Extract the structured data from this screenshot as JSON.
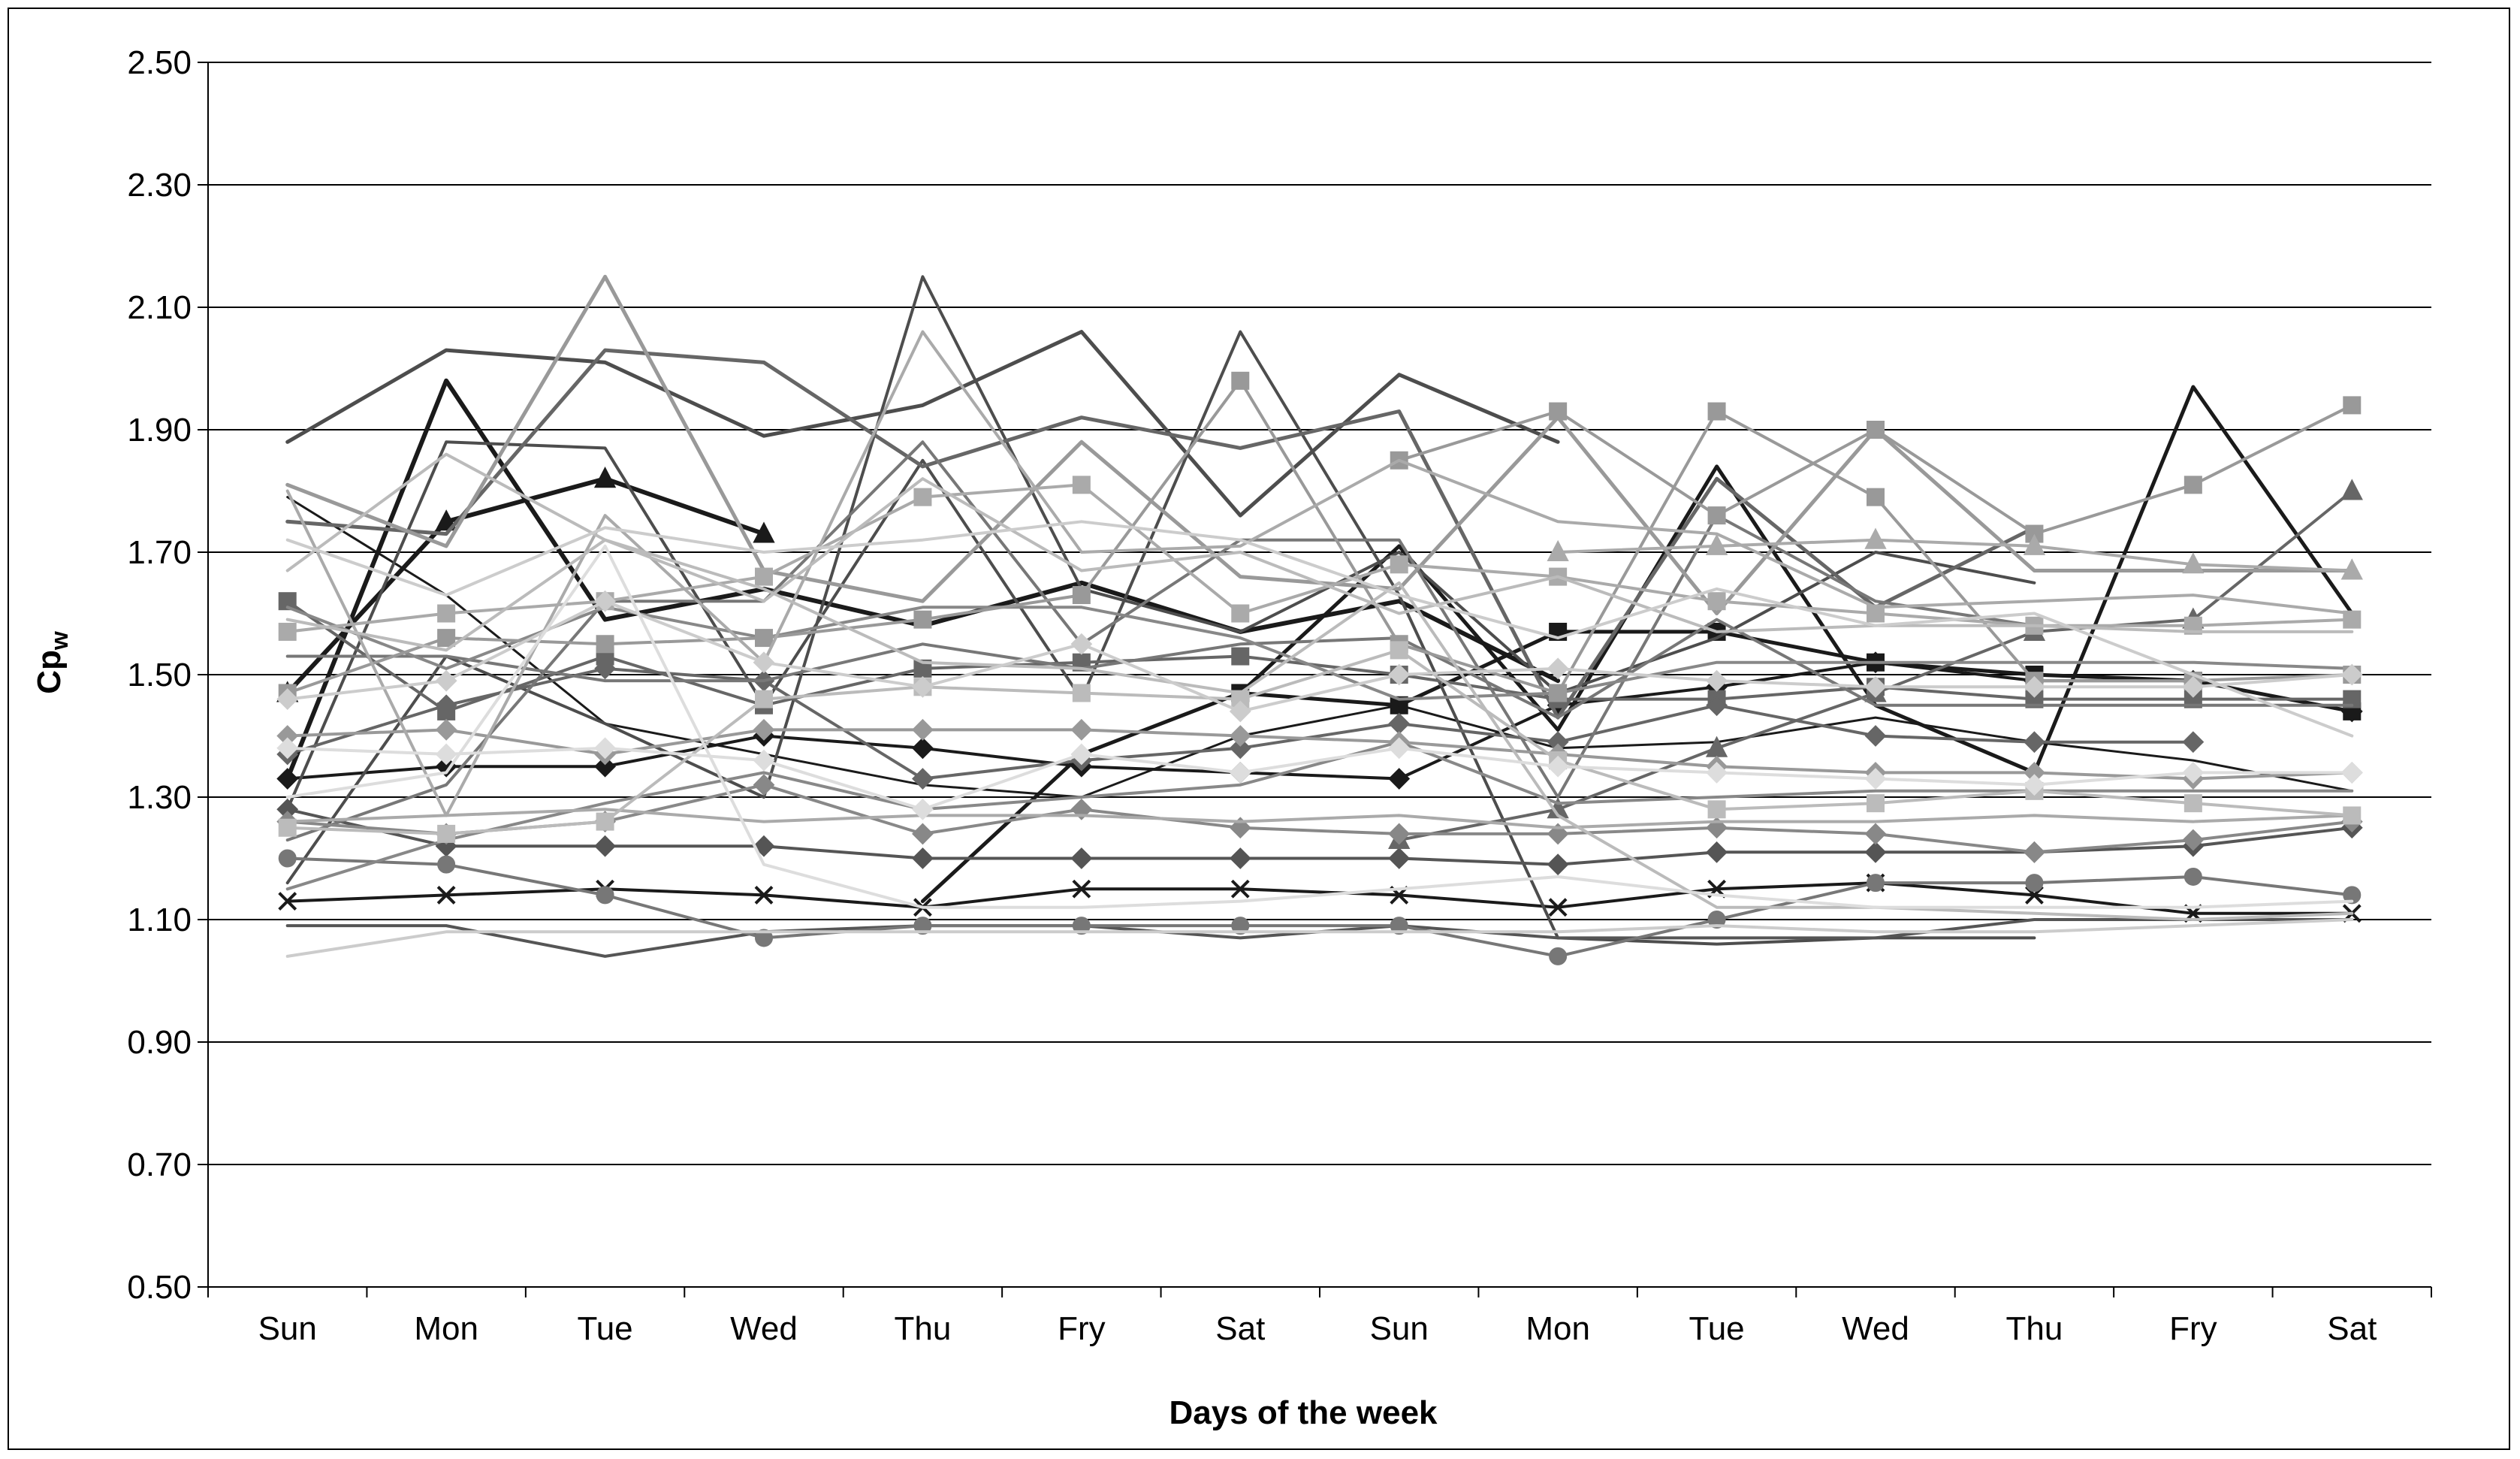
{
  "chart_data": {
    "type": "line",
    "xlabel": "Days of the week",
    "ylabel": "Cp",
    "ylabel_subscript": "w",
    "categories": [
      "Sun",
      "Mon",
      "Tue",
      "Wed",
      "Thu",
      "Fry",
      "Sat",
      "Sun",
      "Mon",
      "Tue",
      "Wed",
      "Thu",
      "Fry",
      "Sat"
    ],
    "yticks": [
      "0.50",
      "0.70",
      "0.90",
      "1.10",
      "1.30",
      "1.50",
      "1.70",
      "1.90",
      "2.10",
      "2.30",
      "2.50"
    ],
    "ylim": [
      0.5,
      2.5
    ],
    "grid": "horizontal",
    "legend": "none",
    "series": [
      {
        "color": "#1a1a1a",
        "width": 6,
        "marker": "triangle",
        "values": [
          1.47,
          1.75,
          1.82,
          1.73,
          null,
          null,
          null,
          null,
          null,
          null,
          null,
          null,
          null,
          null
        ]
      },
      {
        "color": "#1a1a1a",
        "width": 6,
        "marker": "none",
        "values": [
          1.33,
          1.98,
          1.59,
          1.64,
          1.58,
          1.65,
          1.57,
          1.62,
          1.49,
          null,
          null,
          null,
          null,
          null
        ]
      },
      {
        "color": "#1a1a1a",
        "width": 5,
        "marker": "none",
        "values": [
          null,
          null,
          null,
          null,
          1.13,
          1.37,
          1.47,
          1.71,
          1.41,
          1.84,
          1.45,
          1.34,
          1.97,
          1.6
        ]
      },
      {
        "color": "#1a1a1a",
        "width": 5,
        "marker": "square",
        "values": [
          null,
          null,
          null,
          null,
          null,
          null,
          1.47,
          1.45,
          1.57,
          1.57,
          1.52,
          1.5,
          1.49,
          1.44
        ]
      },
      {
        "color": "#1a1a1a",
        "width": 4,
        "marker": "cross",
        "values": [
          1.13,
          1.14,
          1.15,
          1.14,
          1.12,
          1.15,
          1.15,
          1.14,
          1.12,
          1.15,
          1.16,
          1.14,
          1.11,
          1.11
        ]
      },
      {
        "color": "#1a1a1a",
        "width": 4,
        "marker": "diamond",
        "values": [
          1.33,
          1.35,
          1.35,
          1.4,
          1.38,
          1.35,
          1.34,
          1.33,
          1.45,
          1.48,
          1.52,
          1.49,
          1.49,
          1.44
        ]
      },
      {
        "color": "#1a1a1a",
        "width": 3,
        "marker": "none",
        "values": [
          1.79,
          1.63,
          1.42,
          1.37,
          1.32,
          1.3,
          1.4,
          1.45,
          1.38,
          1.39,
          1.43,
          1.39,
          1.36,
          1.31
        ]
      },
      {
        "color": "#4d4d4d",
        "width": 5,
        "marker": "none",
        "values": [
          1.88,
          2.03,
          2.01,
          1.89,
          1.94,
          2.06,
          1.76,
          1.99,
          1.88,
          null,
          null,
          null,
          null,
          null
        ]
      },
      {
        "color": "#4d4d4d",
        "width": 4,
        "marker": "none",
        "values": [
          1.16,
          1.53,
          1.42,
          1.3,
          2.15,
          1.64,
          1.57,
          1.7,
          1.47,
          1.56,
          1.7,
          1.65,
          null,
          null
        ]
      },
      {
        "color": "#4d4d4d",
        "width": 4,
        "marker": "none",
        "values": [
          1.28,
          1.88,
          1.87,
          1.45,
          1.85,
          1.46,
          2.06,
          1.63,
          1.07,
          1.06,
          1.07,
          1.07,
          null,
          null
        ]
      },
      {
        "color": "#555555",
        "width": 4,
        "marker": "diamond",
        "values": [
          1.28,
          1.22,
          1.22,
          1.22,
          1.2,
          1.2,
          1.2,
          1.2,
          1.19,
          1.21,
          1.21,
          1.21,
          1.22,
          1.25
        ]
      },
      {
        "color": "#555555",
        "width": 4,
        "marker": "none",
        "values": [
          1.09,
          1.09,
          1.04,
          1.08,
          1.09,
          1.09,
          1.07,
          1.09,
          1.07,
          1.07,
          1.07,
          1.1,
          1.1,
          1.1
        ]
      },
      {
        "color": "#666666",
        "width": 5,
        "marker": "none",
        "values": [
          1.75,
          1.73,
          2.03,
          2.01,
          1.84,
          1.92,
          1.87,
          1.93,
          1.43,
          1.82,
          1.61,
          1.74,
          null,
          null
        ]
      },
      {
        "color": "#666666",
        "width": 4,
        "marker": "square",
        "values": [
          1.62,
          1.44,
          1.53,
          1.45,
          1.51,
          1.52,
          1.53,
          1.5,
          1.46,
          1.46,
          1.48,
          1.46,
          1.46,
          1.46
        ]
      },
      {
        "color": "#666666",
        "width": 4,
        "marker": "diamond",
        "values": [
          1.37,
          1.45,
          1.51,
          1.49,
          1.33,
          1.36,
          1.38,
          1.42,
          1.39,
          1.45,
          1.4,
          1.39,
          1.39,
          null
        ]
      },
      {
        "color": "#666666",
        "width": 4,
        "marker": "triangle",
        "values": [
          null,
          null,
          null,
          null,
          null,
          null,
          null,
          1.23,
          1.28,
          1.38,
          1.47,
          1.57,
          1.59,
          1.8
        ]
      },
      {
        "color": "#777777",
        "width": 4,
        "marker": "circle",
        "values": [
          1.2,
          1.19,
          1.14,
          1.07,
          1.09,
          1.09,
          1.09,
          1.09,
          1.04,
          1.1,
          1.16,
          1.16,
          1.17,
          1.14
        ]
      },
      {
        "color": "#777777",
        "width": 4,
        "marker": "none",
        "values": [
          1.53,
          1.53,
          1.49,
          1.49,
          1.55,
          1.51,
          1.55,
          1.56,
          1.43,
          1.59,
          1.45,
          1.45,
          1.45,
          1.45
        ]
      },
      {
        "color": "#777777",
        "width": 4,
        "marker": "none",
        "values": [
          1.23,
          1.32,
          1.62,
          1.62,
          1.88,
          1.55,
          1.72,
          1.72,
          1.3,
          1.76,
          1.62,
          1.58,
          null,
          null
        ]
      },
      {
        "color": "#888888",
        "width": 4,
        "marker": "diamond",
        "values": [
          1.26,
          1.24,
          1.26,
          1.32,
          1.24,
          1.28,
          1.25,
          1.24,
          1.24,
          1.25,
          1.24,
          1.21,
          1.23,
          1.26
        ]
      },
      {
        "color": "#888888",
        "width": 4,
        "marker": "none",
        "values": [
          1.15,
          1.23,
          1.29,
          1.34,
          1.28,
          1.3,
          1.32,
          1.39,
          1.29,
          1.3,
          1.31,
          1.31,
          1.31,
          1.31
        ]
      },
      {
        "color": "#888888",
        "width": 4,
        "marker": "none",
        "values": [
          1.61,
          1.51,
          1.61,
          1.56,
          1.61,
          1.61,
          1.56,
          1.46,
          1.47,
          1.52,
          1.52,
          1.52,
          1.52,
          1.51
        ]
      },
      {
        "color": "#999999",
        "width": 5,
        "marker": "none",
        "values": [
          1.81,
          1.71,
          2.15,
          1.67,
          1.62,
          1.88,
          1.66,
          1.64,
          1.92,
          1.6,
          1.9,
          1.67,
          1.67,
          1.67
        ]
      },
      {
        "color": "#999999",
        "width": 4,
        "marker": "square",
        "values": [
          1.47,
          1.56,
          1.55,
          1.56,
          1.59,
          1.63,
          1.98,
          1.55,
          1.47,
          1.93,
          1.79,
          1.49,
          1.49,
          1.5
        ]
      },
      {
        "color": "#999999",
        "width": 4,
        "marker": "square",
        "values": [
          null,
          null,
          null,
          null,
          null,
          null,
          null,
          1.85,
          1.93,
          1.76,
          1.9,
          1.73,
          1.81,
          1.94
        ]
      },
      {
        "color": "#999999",
        "width": 4,
        "marker": "diamond",
        "values": [
          1.4,
          1.41,
          1.37,
          1.41,
          1.41,
          1.41,
          1.4,
          1.39,
          1.37,
          1.35,
          1.34,
          1.34,
          1.33,
          1.34
        ]
      },
      {
        "color": "#aaaaaa",
        "width": 4,
        "marker": "none",
        "values": [
          1.8,
          1.27,
          1.76,
          1.52,
          2.06,
          1.7,
          1.71,
          1.85,
          1.75,
          1.73,
          1.61,
          1.62,
          1.63,
          1.6
        ]
      },
      {
        "color": "#aaaaaa",
        "width": 4,
        "marker": "square",
        "values": [
          1.57,
          1.6,
          1.62,
          1.66,
          1.79,
          1.81,
          1.6,
          1.68,
          1.66,
          1.62,
          1.6,
          1.58,
          1.58,
          1.59
        ]
      },
      {
        "color": "#aaaaaa",
        "width": 4,
        "marker": "triangle",
        "values": [
          null,
          null,
          null,
          null,
          null,
          null,
          null,
          null,
          1.7,
          1.71,
          1.72,
          1.71,
          1.68,
          1.67
        ]
      },
      {
        "color": "#aaaaaa",
        "width": 4,
        "marker": "none",
        "values": [
          1.26,
          1.27,
          1.28,
          1.26,
          1.27,
          1.27,
          1.26,
          1.27,
          1.25,
          1.26,
          1.26,
          1.27,
          1.26,
          1.27
        ]
      },
      {
        "color": "#bbbbbb",
        "width": 4,
        "marker": "none",
        "values": [
          1.67,
          1.86,
          1.72,
          1.62,
          1.82,
          1.67,
          1.7,
          1.6,
          1.66,
          1.57,
          1.58,
          1.58,
          1.57,
          1.57
        ]
      },
      {
        "color": "#bbbbbb",
        "width": 4,
        "marker": "square",
        "values": [
          1.25,
          1.24,
          1.26,
          1.46,
          1.48,
          1.47,
          1.46,
          1.54,
          1.36,
          1.28,
          1.29,
          1.31,
          1.29,
          1.27
        ]
      },
      {
        "color": "#bbbbbb",
        "width": 4,
        "marker": "none",
        "values": [
          1.59,
          1.54,
          1.72,
          1.64,
          1.52,
          1.51,
          1.47,
          1.65,
          1.27,
          1.12,
          1.12,
          1.11,
          1.1,
          1.11
        ]
      },
      {
        "color": "#cccccc",
        "width": 4,
        "marker": "diamond",
        "values": [
          1.46,
          1.49,
          1.62,
          1.52,
          1.48,
          1.55,
          1.44,
          1.5,
          1.51,
          1.49,
          1.48,
          1.48,
          1.48,
          1.5
        ]
      },
      {
        "color": "#cccccc",
        "width": 4,
        "marker": "none",
        "values": [
          1.04,
          1.08,
          1.08,
          1.08,
          1.08,
          1.08,
          1.08,
          1.08,
          1.08,
          1.09,
          1.08,
          1.08,
          1.09,
          1.1
        ]
      },
      {
        "color": "#cccccc",
        "width": 4,
        "marker": "none",
        "values": [
          1.72,
          1.63,
          1.74,
          1.7,
          1.72,
          1.75,
          1.72,
          1.63,
          1.56,
          1.64,
          1.58,
          1.6,
          1.5,
          1.4
        ]
      },
      {
        "color": "#dddddd",
        "width": 4,
        "marker": "none",
        "values": [
          1.3,
          1.34,
          1.71,
          1.19,
          1.12,
          1.12,
          1.13,
          1.15,
          1.17,
          1.14,
          1.12,
          1.12,
          1.12,
          1.13
        ]
      },
      {
        "color": "#dddddd",
        "width": 4,
        "marker": "diamond",
        "values": [
          1.38,
          1.37,
          1.38,
          1.36,
          1.28,
          1.37,
          1.34,
          1.38,
          1.35,
          1.34,
          1.33,
          1.32,
          1.34,
          1.34
        ]
      }
    ]
  }
}
